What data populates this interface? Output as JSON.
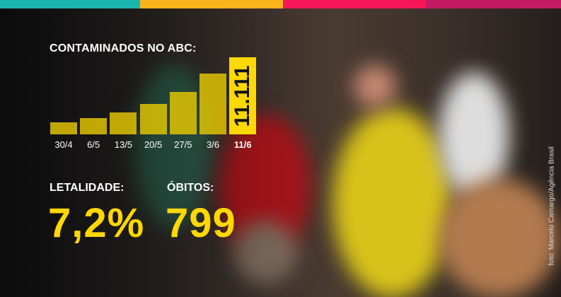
{
  "colors": {
    "strip": [
      "#1bb5b0",
      "#f9b31b",
      "#f5175a",
      "#c41a64"
    ],
    "bar": "#e6c800",
    "highlight": "#ffd800",
    "text": "#ffffff"
  },
  "chart_data": {
    "type": "bar",
    "title": "CONTAMINADOS NO ABC:",
    "categories": [
      "30/4",
      "6/5",
      "13/5",
      "20/5",
      "27/5",
      "3/6",
      "11/6"
    ],
    "values": [
      1730,
      2350,
      3160,
      4390,
      6120,
      8770,
      11111
    ],
    "data_labels": {
      "11/6": "11.111"
    },
    "ylim": [
      0,
      11111
    ],
    "grid": false
  },
  "stats": {
    "letalidade_label": "LETALIDADE:",
    "letalidade_value": "7,2%",
    "obitos_label": "ÓBITOS:",
    "obitos_value": "799"
  },
  "credit": "foto: Marcelo Camargo/Agência Brasil"
}
